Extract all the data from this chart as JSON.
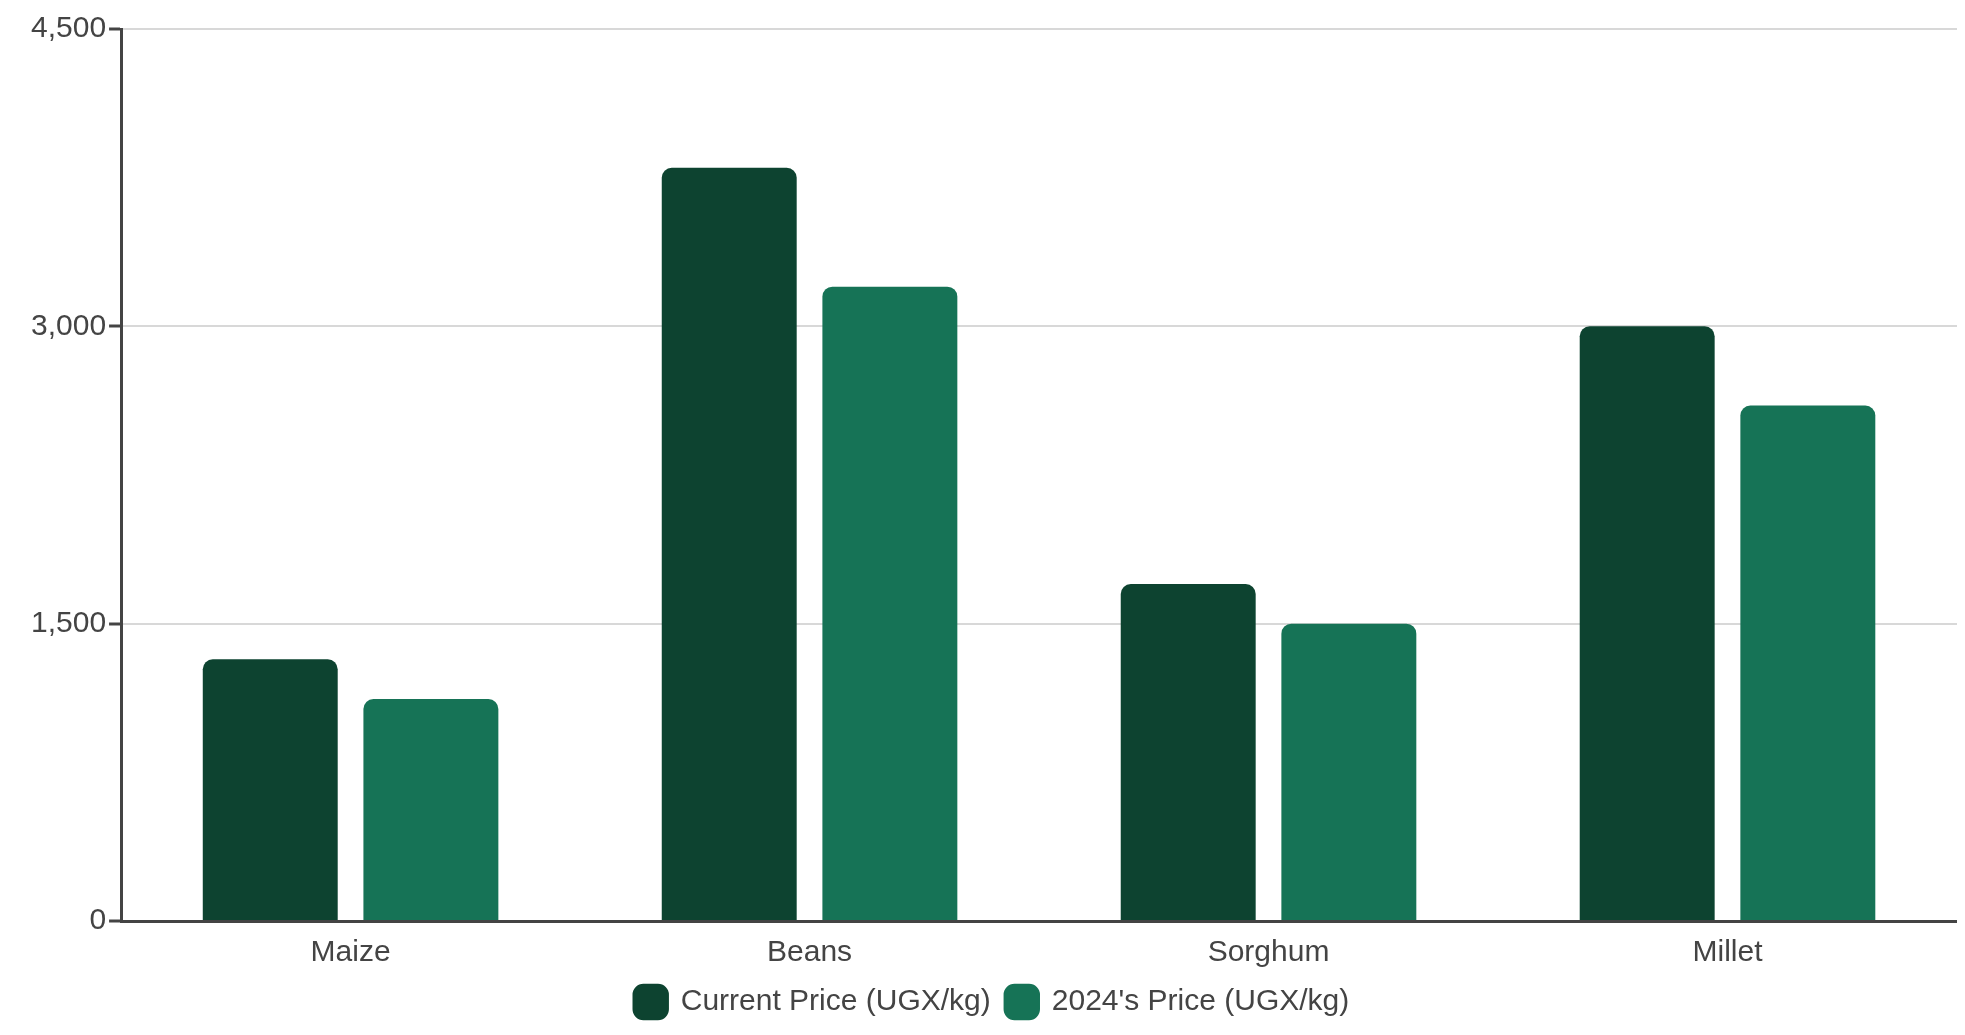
{
  "chart_data": {
    "type": "bar",
    "categories": [
      "Maize",
      "Beans",
      "Sorghum",
      "Millet"
    ],
    "series": [
      {
        "name": "Current Price (UGX/kg)",
        "color": "#0d4330",
        "values": [
          1320,
          3800,
          1700,
          3000
        ]
      },
      {
        "name": "2024's Price (UGX/kg)",
        "color": "#167356",
        "values": [
          1120,
          3200,
          1500,
          2600
        ]
      }
    ],
    "ylim": [
      0,
      4500
    ],
    "yticks": [
      0,
      {
        "value": 1500,
        "label": "1,500"
      },
      {
        "value": 3000,
        "label": "3,000"
      },
      {
        "value": 4500,
        "label": "4,500"
      }
    ],
    "grid": "y",
    "legend": "bottom"
  }
}
